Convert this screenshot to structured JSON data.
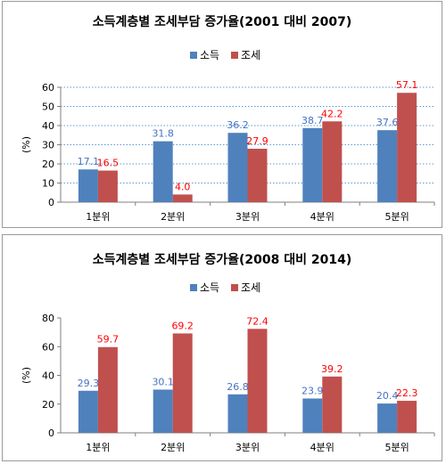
{
  "chart_data": [
    {
      "type": "bar",
      "title": "소득계층별 조세부담 증가율(2001 대비 2007)",
      "ylabel": "(%)",
      "xlabel": "",
      "ylim": [
        0,
        60
      ],
      "yticks": [
        0,
        10,
        20,
        30,
        40,
        50,
        60
      ],
      "gridlines": "dotted horizontal",
      "legend_position": "top-center",
      "categories": [
        "1분위",
        "2분위",
        "3분위",
        "4분위",
        "5분위"
      ],
      "series": [
        {
          "name": "소득",
          "color": "#4f81bd",
          "label_color": "#4472c4",
          "values": [
            17.1,
            31.8,
            36.2,
            38.7,
            37.6
          ]
        },
        {
          "name": "조세",
          "color": "#c0504d",
          "label_color": "#ff0000",
          "values": [
            16.5,
            4.0,
            27.9,
            42.2,
            57.1
          ]
        }
      ]
    },
    {
      "type": "bar",
      "title": "소득계층별 조세부담 증가율(2008 대비 2014)",
      "ylabel": "(%)",
      "xlabel": "",
      "ylim": [
        0,
        80
      ],
      "yticks": [
        0,
        20,
        40,
        60,
        80
      ],
      "gridlines": "none",
      "legend_position": "top-center",
      "categories": [
        "1분위",
        "2분위",
        "3분위",
        "4분위",
        "5분위"
      ],
      "series": [
        {
          "name": "소득",
          "color": "#4f81bd",
          "label_color": "#4472c4",
          "values": [
            29.3,
            30.1,
            26.8,
            23.9,
            20.4
          ]
        },
        {
          "name": "조세",
          "color": "#c0504d",
          "label_color": "#ff0000",
          "values": [
            59.7,
            69.2,
            72.4,
            39.2,
            22.3
          ]
        }
      ]
    }
  ]
}
